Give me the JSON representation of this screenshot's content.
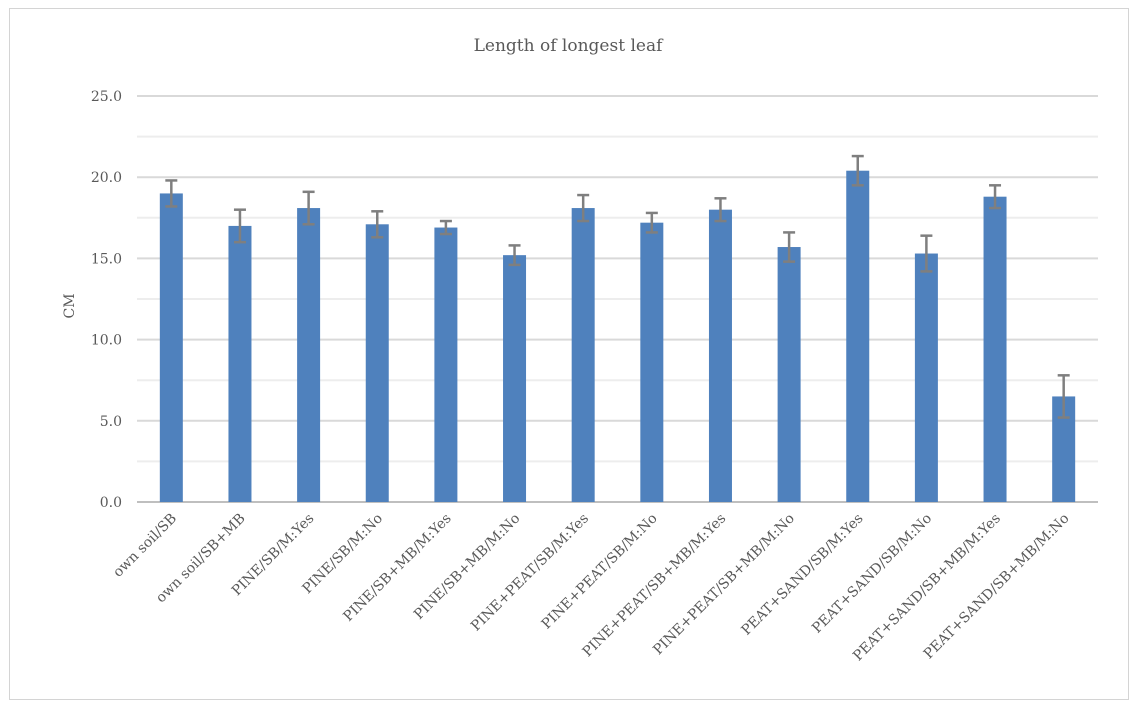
{
  "chart_data": {
    "type": "bar",
    "title": "Length of longest leaf",
    "xlabel": "",
    "ylabel": "CM",
    "ylim": [
      0,
      25
    ],
    "yticks": [
      "0.0",
      "5.0",
      "10.0",
      "15.0",
      "20.0",
      "25.0"
    ],
    "grid": true,
    "bar_color": "#4f81bd",
    "error_bar_color": "#7f7f7f",
    "grid_major_color": "#d9d9d9",
    "grid_minor_color": "#ededed",
    "categories": [
      "own soil/SB",
      "own soil/SB+MB",
      "PINE/SB/M:Yes",
      "PINE/SB/M:No",
      "PINE/SB+MB/M:Yes",
      "PINE/SB+MB/M:No",
      "PINE+PEAT/SB/M:Yes",
      "PINE+PEAT/SB/M:No",
      "PINE+PEAT/SB+MB/M:Yes",
      "PINE+PEAT/SB+MB/M:No",
      "PEAT+SAND/SB/M:Yes",
      "PEAT+SAND/SB/M:No",
      "PEAT+SAND/SB+MB/M:Yes",
      "PEAT+SAND/SB+MB/M:No"
    ],
    "values": [
      19.0,
      17.0,
      18.1,
      17.1,
      16.9,
      15.2,
      18.1,
      17.2,
      18.0,
      15.7,
      20.4,
      15.3,
      18.8,
      6.5
    ],
    "errors": [
      0.8,
      1.0,
      1.0,
      0.8,
      0.4,
      0.6,
      0.8,
      0.6,
      0.7,
      0.9,
      0.9,
      1.1,
      0.7,
      1.3
    ]
  }
}
